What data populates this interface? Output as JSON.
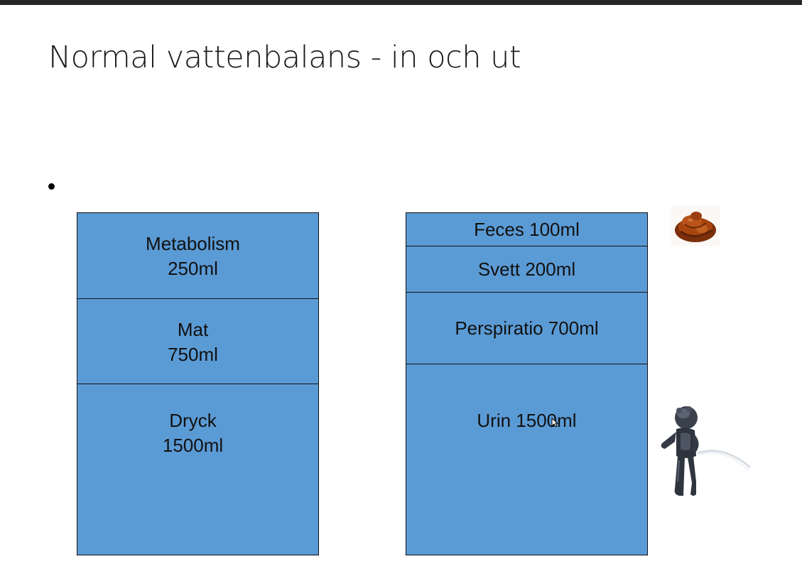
{
  "slide": {
    "title": "Normal vattenbalans - in och ut"
  },
  "intake": {
    "segments": [
      {
        "label": "Metabolism",
        "amount": "250ml"
      },
      {
        "label": "Mat",
        "amount": "750ml"
      },
      {
        "label": "Dryck",
        "amount": "1500ml"
      }
    ]
  },
  "output": {
    "segments": [
      {
        "text": "Feces 100ml"
      },
      {
        "text": "Svett 200ml"
      },
      {
        "text": "Perspiratio 700ml"
      },
      {
        "text": "Urin 1500ml"
      }
    ]
  },
  "icons": {
    "feces": "feces-icon",
    "statue": "manneken-pis-icon"
  },
  "colors": {
    "box_fill": "#5b9bd5",
    "border": "#111111",
    "top_bar": "#262626"
  }
}
